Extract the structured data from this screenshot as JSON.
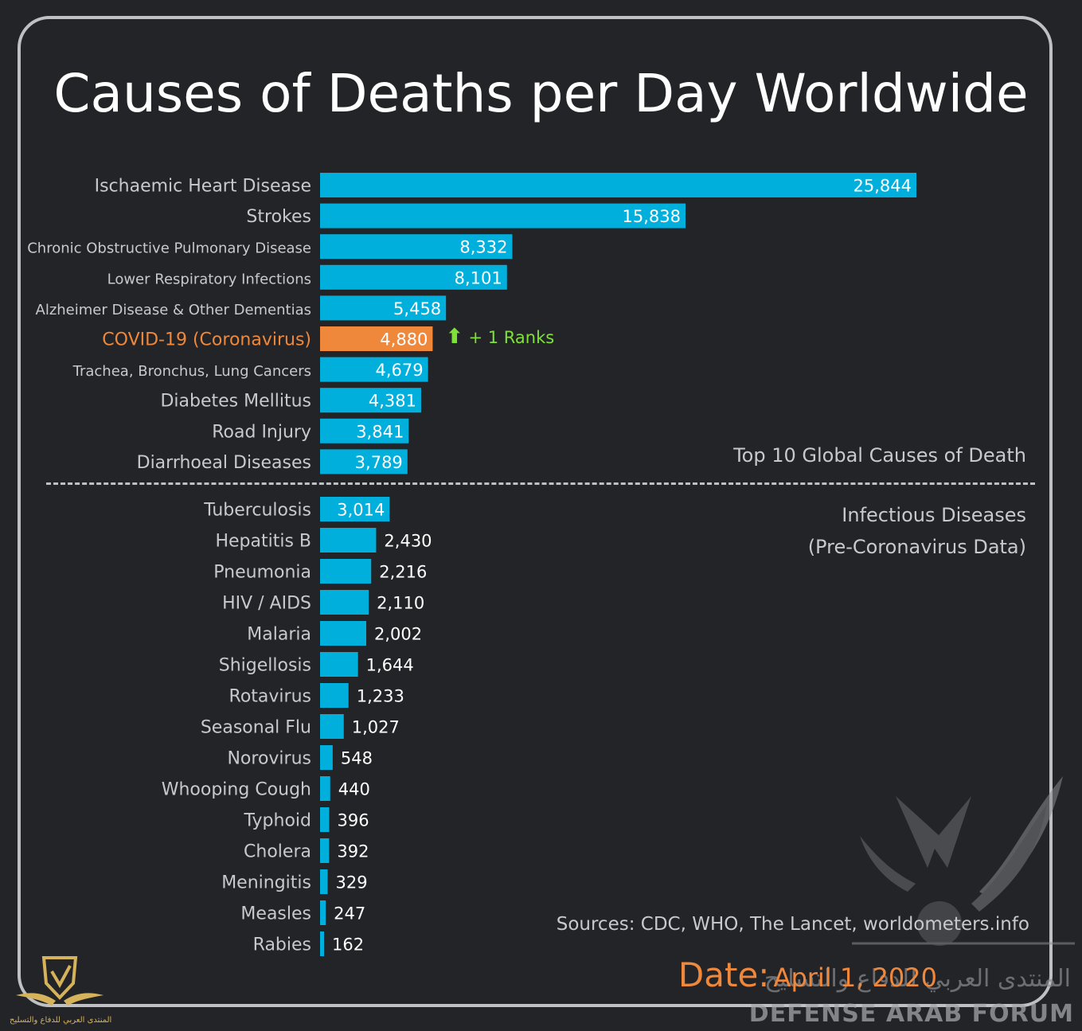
{
  "chart_data": {
    "type": "bar",
    "orientation": "horizontal",
    "title": "Causes of Deaths per Day Worldwide",
    "highlight_color": "#f0883b",
    "bar_color": "#00afdc",
    "groups": [
      {
        "label": "Top 10 Global Causes of Death",
        "categories": [
          "Ischaemic Heart Disease",
          "Strokes",
          "Chronic Obstructive Pulmonary Disease",
          "Lower Respiratory Infections",
          "Alzheimer Disease & Other Dementias",
          "COVID-19  (Coronavirus)",
          "Trachea, Bronchus, Lung Cancers",
          "Diabetes Mellitus",
          "Road Injury",
          "Diarrhoeal Diseases"
        ],
        "values": [
          25844,
          15838,
          8332,
          8101,
          5458,
          4880,
          4679,
          4381,
          3841,
          3789
        ],
        "value_labels": [
          "25,844",
          "15,838",
          "8,332",
          "8,101",
          "5,458",
          "4,880",
          "4,679",
          "4,381",
          "3,841",
          "3,789"
        ],
        "highlight_index": 5
      },
      {
        "label_lines": [
          "Infectious Diseases",
          "(Pre-Coronavirus Data)"
        ],
        "categories": [
          "Tuberculosis",
          "Hepatitis B",
          "Pneumonia",
          "HIV / AIDS",
          "Malaria",
          "Shigellosis",
          "Rotavirus",
          "Seasonal Flu",
          "Norovirus",
          "Whooping Cough",
          "Typhoid",
          "Cholera",
          "Meningitis",
          "Measles",
          "Rabies"
        ],
        "values": [
          3014,
          2430,
          2216,
          2110,
          2002,
          1644,
          1233,
          1027,
          548,
          440,
          396,
          392,
          329,
          247,
          162
        ],
        "value_labels": [
          "3,014",
          "2,430",
          "2,216",
          "2,110",
          "2,002",
          "1,644",
          "1,233",
          "1,027",
          "548",
          "440",
          "396",
          "392",
          "329",
          "247",
          "162"
        ]
      }
    ],
    "annotation": "+ 1 Ranks"
  },
  "sources": "Sources: CDC, WHO, The Lancet, worldometers.info",
  "date_label": "Date:",
  "date_value": "April  1, 2020",
  "watermark": {
    "arabic": "المنتدى العربي للدفاع والتسليح",
    "english": "DEFENSE ARAB FORUM",
    "corner_text": "المنتدى العربي للدفاع والتسليح"
  }
}
